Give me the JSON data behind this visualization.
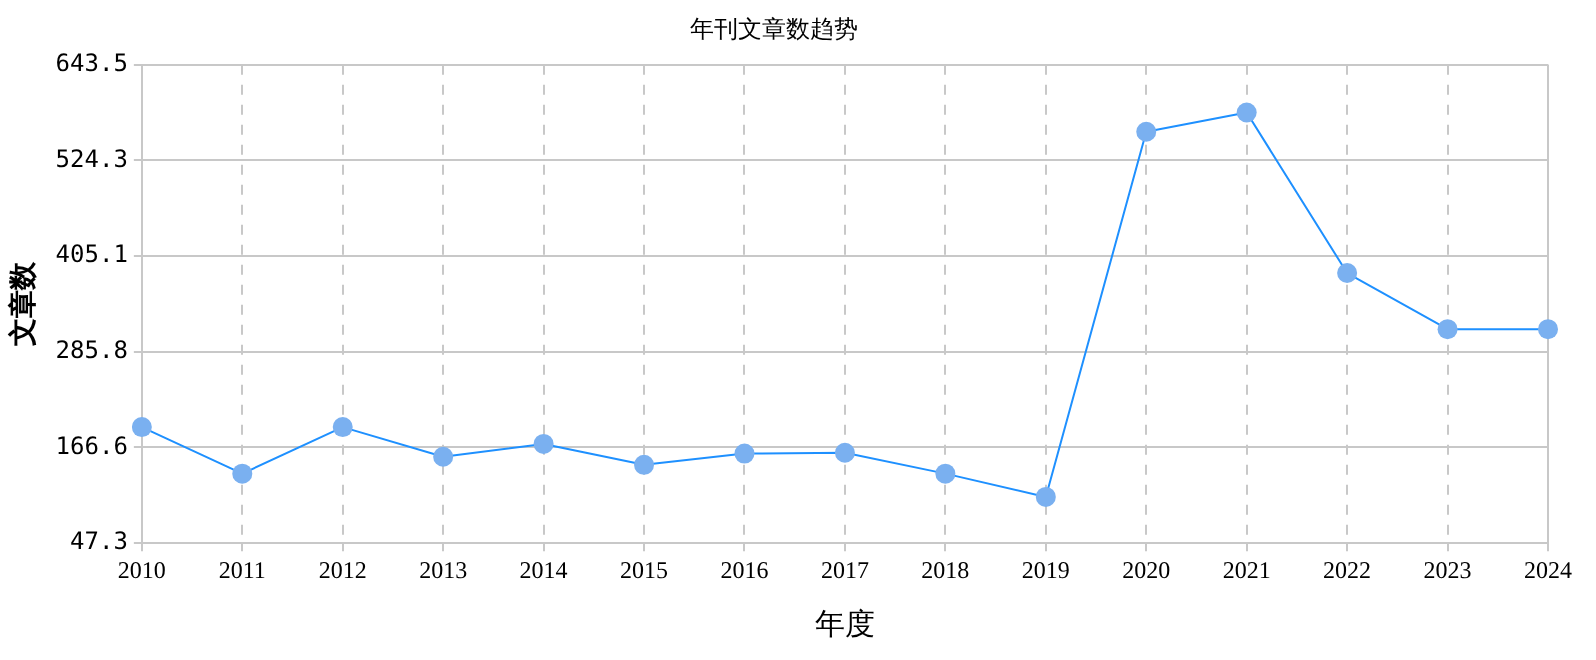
{
  "chart_data": {
    "type": "line",
    "title": "年刊文章数趋势",
    "xlabel": "年度",
    "ylabel": "文章数",
    "categories": [
      "2010",
      "2011",
      "2012",
      "2013",
      "2014",
      "2015",
      "2016",
      "2017",
      "2018",
      "2019",
      "2020",
      "2021",
      "2022",
      "2023",
      "2024"
    ],
    "series": [
      {
        "color": "#1e90ff",
        "values": [
          192,
          134,
          192,
          155,
          171,
          145,
          159,
          160,
          134,
          105,
          560,
          584,
          384,
          314,
          314
        ]
      }
    ],
    "ylim": [
      47.3,
      643.5
    ],
    "yticks": [
      47.3,
      166.6,
      285.8,
      405.1,
      524.3,
      643.5
    ],
    "grid": true,
    "marker": "circle",
    "line_style": "solid",
    "legend": false
  }
}
